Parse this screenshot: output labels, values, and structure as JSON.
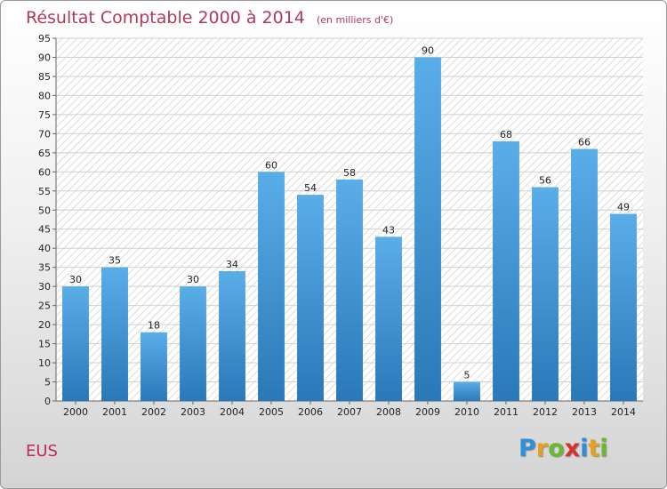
{
  "header": {
    "title": "Résultat Comptable 2000 à 2014",
    "subtitle": "(en milliers d'€)"
  },
  "footer": {
    "place": "EUS",
    "brand": "Proxiti",
    "brand_letters": [
      {
        "char": "P",
        "color": "#2f8fd8"
      },
      {
        "char": "r",
        "color": "#e8a020"
      },
      {
        "char": "o",
        "color": "#6ab82e"
      },
      {
        "char": "x",
        "color": "#d8302a"
      },
      {
        "char": "i",
        "color": "#2f8fd8"
      },
      {
        "char": "t",
        "color": "#e8a020"
      },
      {
        "char": "i",
        "color": "#6ab82e"
      }
    ]
  },
  "chart_data": {
    "type": "bar",
    "title": "Résultat Comptable 2000 à 2014",
    "subtitle": "(en milliers d'€)",
    "xlabel": "",
    "ylabel": "",
    "ylim": [
      0,
      95
    ],
    "ytick_step": 5,
    "grid": true,
    "categories": [
      "2000",
      "2001",
      "2002",
      "2003",
      "2004",
      "2005",
      "2006",
      "2007",
      "2008",
      "2009",
      "2010",
      "2011",
      "2012",
      "2013",
      "2014"
    ],
    "values": [
      30,
      35,
      18,
      30,
      34,
      60,
      54,
      58,
      43,
      90,
      5,
      68,
      56,
      66,
      49
    ],
    "bar_color_top": "#5aaee8",
    "bar_color_bottom": "#2a78b8"
  }
}
